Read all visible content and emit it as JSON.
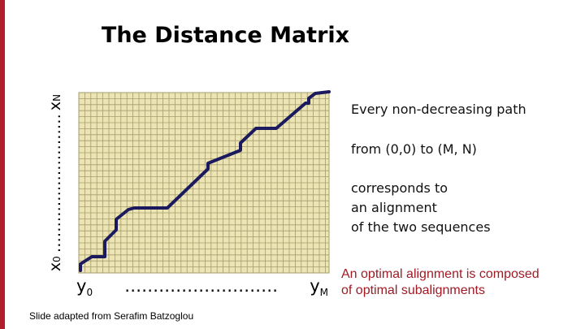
{
  "slide": {
    "title": "The Distance Matrix",
    "accent_color": "#b01e2a",
    "highlight_color": "#a01a24"
  },
  "axes": {
    "x_start": "x",
    "x_start_sub": "0",
    "x_end": "x",
    "x_end_sub": "N",
    "y_start": "y",
    "y_start_sub": "0",
    "y_end": "y",
    "y_end_sub": "M",
    "dots": "………………………"
  },
  "matrix": {
    "fill_color": "#ece5b3",
    "grid_color": "#a59c6e",
    "path_color": "#1b1a5e"
  },
  "notes": {
    "line1": "Every non-decreasing path",
    "line2": "from (0,0) to (M, N)",
    "line3a": "corresponds to",
    "line3b": "an alignment",
    "line3c": "of the two sequences"
  },
  "highlight": {
    "line1": "An optimal alignment is composed",
    "line2": "of optimal subalignments"
  },
  "credit": "Slide adapted from Serafim Batzoglou"
}
